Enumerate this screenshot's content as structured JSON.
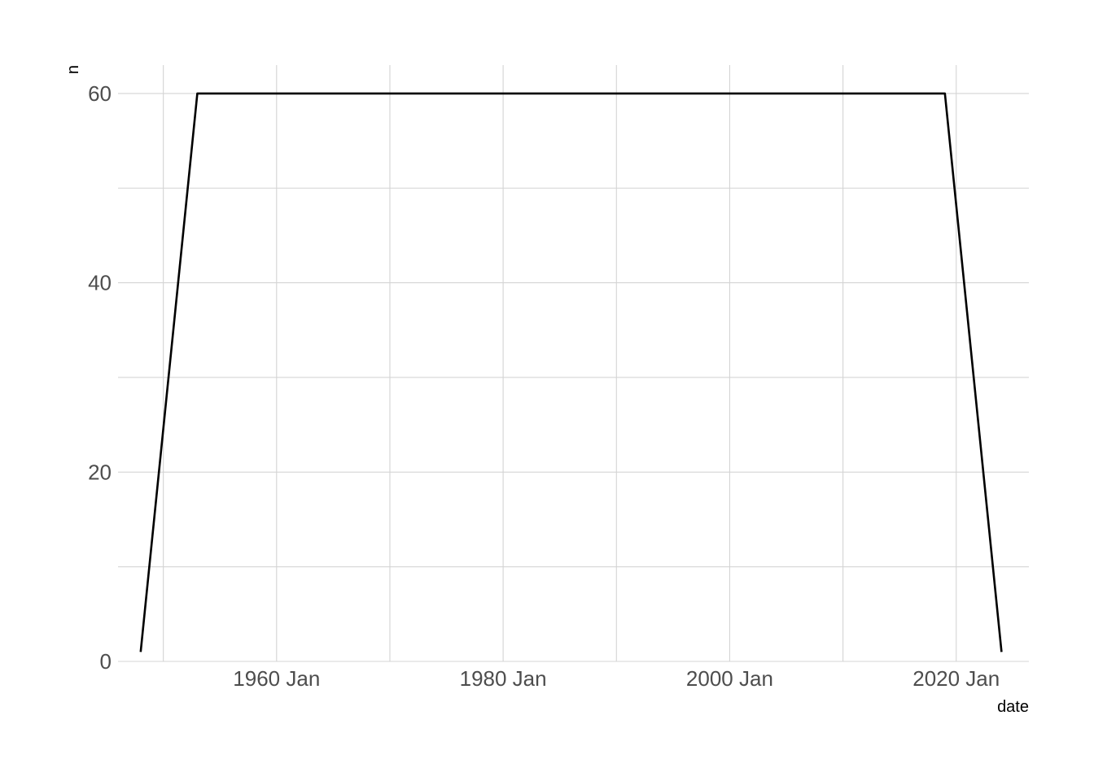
{
  "chart_data": {
    "type": "line",
    "title": "",
    "xlabel": "date",
    "ylabel": "n",
    "x_is_date": true,
    "xlim": [
      "1946-01-01",
      "2026-06-01"
    ],
    "ylim": [
      0,
      63
    ],
    "x_ticks": [
      {
        "value": "1960-01-01",
        "label": "1960 Jan"
      },
      {
        "value": "1980-01-01",
        "label": "1980 Jan"
      },
      {
        "value": "2000-01-01",
        "label": "2000 Jan"
      },
      {
        "value": "2020-01-01",
        "label": "2020 Jan"
      }
    ],
    "x_minor_ticks": [
      "1950-01-01",
      "1970-01-01",
      "1990-01-01",
      "2010-01-01"
    ],
    "y_ticks": [
      {
        "value": 0,
        "label": "0"
      },
      {
        "value": 20,
        "label": "20"
      },
      {
        "value": 40,
        "label": "40"
      },
      {
        "value": 60,
        "label": "60"
      }
    ],
    "y_minor_ticks": [
      10,
      30,
      50
    ],
    "grid": true,
    "legend": "none",
    "series": [
      {
        "color": "#000000",
        "points": [
          {
            "x": "1948-01-01",
            "y": 1
          },
          {
            "x": "1953-01-01",
            "y": 60
          },
          {
            "x": "2019-01-01",
            "y": 60
          },
          {
            "x": "2024-01-01",
            "y": 1
          }
        ]
      }
    ]
  }
}
